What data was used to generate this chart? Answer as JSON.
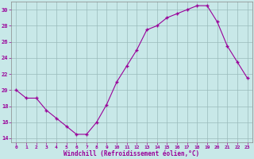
{
  "x": [
    0,
    1,
    2,
    3,
    4,
    5,
    6,
    7,
    8,
    9,
    10,
    11,
    12,
    13,
    14,
    15,
    16,
    17,
    18,
    19,
    20,
    21,
    22,
    23
  ],
  "y": [
    20,
    19,
    19,
    17.5,
    16.5,
    15.5,
    14.5,
    14.5,
    16,
    18.2,
    21,
    23,
    25,
    27.5,
    28,
    29,
    29.5,
    30,
    30.5,
    30.5,
    28.5,
    25.5,
    23.5,
    21.5
  ],
  "line_color": "#990099",
  "marker_color": "#990099",
  "bg_color": "#c8e8e8",
  "grid_color": "#99bbbb",
  "xlabel": "Windchill (Refroidissement éolien,°C)",
  "xlabel_color": "#990099",
  "tick_color": "#990099",
  "ylim": [
    13.5,
    31.0
  ],
  "yticks": [
    14,
    16,
    18,
    20,
    22,
    24,
    26,
    28,
    30
  ],
  "xticks": [
    0,
    1,
    2,
    3,
    4,
    5,
    6,
    7,
    8,
    9,
    10,
    11,
    12,
    13,
    14,
    15,
    16,
    17,
    18,
    19,
    20,
    21,
    22,
    23
  ],
  "figsize": [
    3.2,
    2.0
  ],
  "dpi": 100
}
